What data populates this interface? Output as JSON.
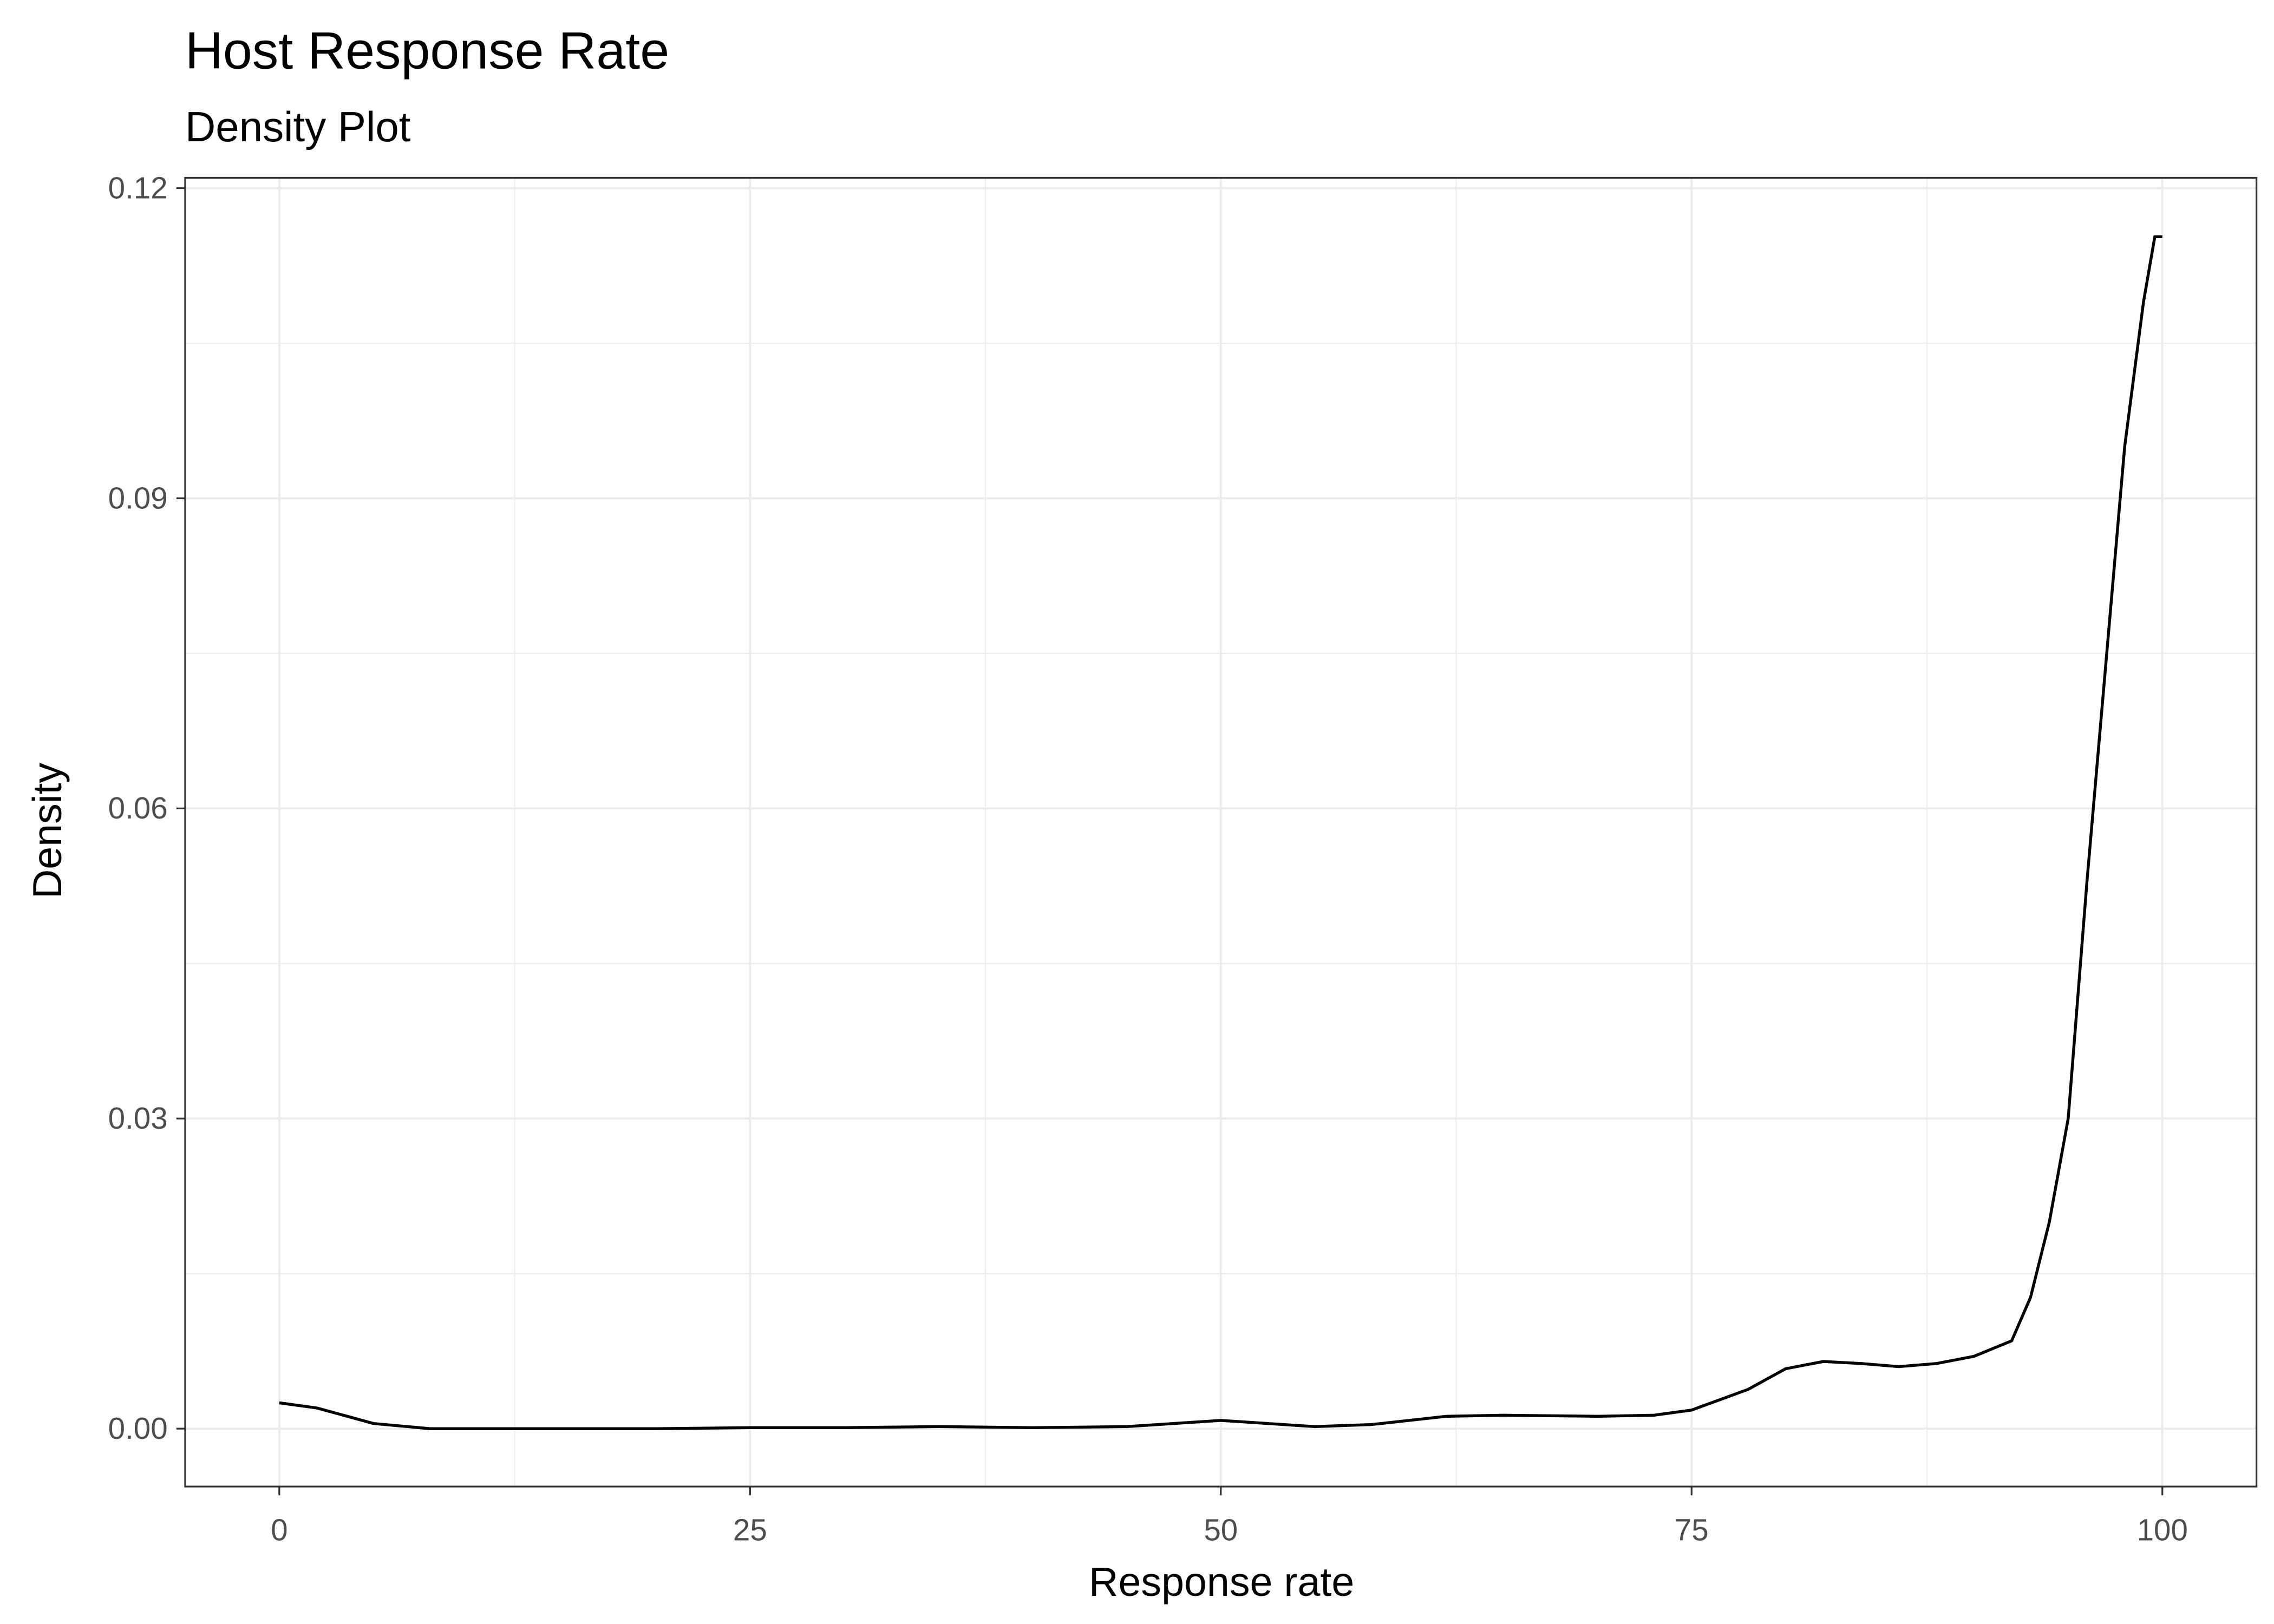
{
  "chart_data": {
    "type": "line",
    "title": "Host Response Rate",
    "subtitle": "Density Plot",
    "x_label": "Response rate",
    "y_label": "Density",
    "x": [
      0,
      2,
      5,
      8,
      15,
      20,
      25,
      30,
      35,
      40,
      45,
      50,
      55,
      58,
      62,
      65,
      70,
      73,
      75,
      78,
      80,
      82,
      84,
      86,
      88,
      90,
      92,
      93,
      94,
      95,
      96,
      97,
      98,
      99,
      99.6,
      100
    ],
    "series": [
      {
        "color": "#000000",
        "values": [
          0.0025,
          0.002,
          0.0005,
          0.0,
          0.0,
          0.0,
          0.0001,
          0.0001,
          0.0002,
          0.0001,
          0.0002,
          0.0008,
          0.0002,
          0.0004,
          0.0012,
          0.0013,
          0.0012,
          0.0013,
          0.0018,
          0.0038,
          0.0058,
          0.0065,
          0.0063,
          0.006,
          0.0063,
          0.007,
          0.0085,
          0.0127,
          0.02,
          0.03,
          0.053,
          0.074,
          0.095,
          0.109,
          0.1153,
          0.1153
        ]
      }
    ],
    "xlim": [
      -5,
      105
    ],
    "ylim": [
      -0.0056,
      0.121
    ],
    "xticks": [
      0,
      25,
      50,
      75,
      100
    ],
    "yticks": [
      {
        "value": 0,
        "label": "0.00"
      },
      {
        "value": 0.03,
        "label": "0.03"
      },
      {
        "value": 0.06,
        "label": "0.06"
      },
      {
        "value": 0.09,
        "label": "0.09"
      },
      {
        "value": 0.12,
        "label": "0.12"
      }
    ],
    "x_minor_ticks": [
      12.5,
      37.5,
      62.5,
      87.5
    ],
    "y_minor_ticks": [
      0.015,
      0.045,
      0.075,
      0.105
    ],
    "grid": true
  }
}
